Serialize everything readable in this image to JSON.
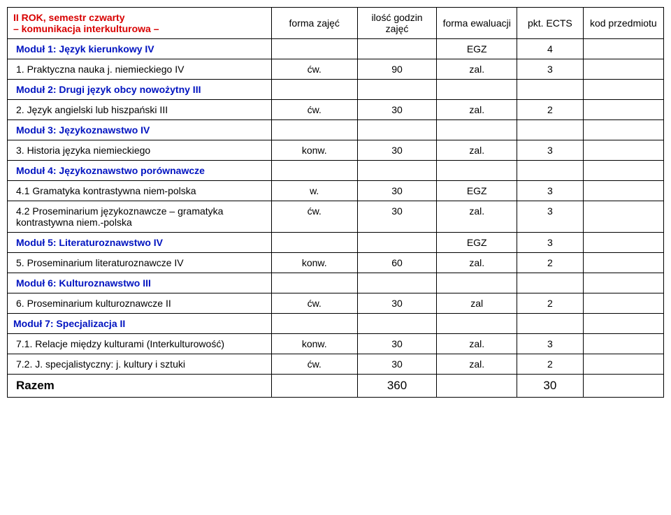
{
  "header": {
    "title_line1": "II ROK, semestr czwarty",
    "title_line2": "– komunikacja interkulturowa –",
    "cols": [
      "forma zajęć",
      "ilość godzin zajęć",
      "forma ewaluacji",
      "pkt. ECTS",
      "kod przedmiotu"
    ]
  },
  "rows": [
    {
      "type": "module",
      "name": "Moduł 1: Język kierunkowy IV",
      "a": "",
      "b": "",
      "c": "EGZ",
      "d": "4",
      "e": ""
    },
    {
      "type": "item",
      "name": "1. Praktyczna nauka j. niemieckiego IV",
      "a": "ćw.",
      "b": "90",
      "c": "zal.",
      "d": "3",
      "e": ""
    },
    {
      "type": "module",
      "name": "Moduł 2: Drugi język obcy nowożytny III",
      "a": "",
      "b": "",
      "c": "",
      "d": "",
      "e": ""
    },
    {
      "type": "item",
      "name": "2. Język angielski lub hiszpański III",
      "a": "ćw.",
      "b": "30",
      "c": "zal.",
      "d": "2",
      "e": ""
    },
    {
      "type": "module",
      "name": "Moduł 3: Językoznawstwo IV",
      "a": "",
      "b": "",
      "c": "",
      "d": "",
      "e": ""
    },
    {
      "type": "item",
      "name": "3. Historia języka niemieckiego",
      "a": "konw.",
      "b": "30",
      "c": "zal.",
      "d": "3",
      "e": ""
    },
    {
      "type": "module",
      "name": "Moduł 4: Językoznawstwo porównawcze",
      "a": "",
      "b": "",
      "c": "",
      "d": "",
      "e": ""
    },
    {
      "type": "item",
      "name": "4.1 Gramatyka kontrastywna niem-polska",
      "a": "w.",
      "b": "30",
      "c": "EGZ",
      "d": "3",
      "e": ""
    },
    {
      "type": "item",
      "name": "4.2 Proseminarium językoznawcze – gramatyka kontrastywna niem.-polska",
      "a": "ćw.",
      "b": "30",
      "c": "zal.",
      "d": "3",
      "e": ""
    },
    {
      "type": "module",
      "name": "Moduł 5: Literaturoznawstwo IV",
      "a": "",
      "b": "",
      "c": "EGZ",
      "d": "3",
      "e": ""
    },
    {
      "type": "item",
      "name": "5. Proseminarium literaturoznawcze IV",
      "a": "konw.",
      "b": "60",
      "c": "zal.",
      "d": "2",
      "e": ""
    },
    {
      "type": "module",
      "name": "Moduł 6: Kulturoznawstwo III",
      "a": "",
      "b": "",
      "c": "",
      "d": "",
      "e": ""
    },
    {
      "type": "item",
      "name": "6. Proseminarium kulturoznawcze II",
      "a": "ćw.",
      "b": "30",
      "c": "zal",
      "d": "2",
      "e": ""
    },
    {
      "type": "module-left",
      "name": "Moduł 7: Specjalizacja II",
      "a": "",
      "b": "",
      "c": "",
      "d": "",
      "e": ""
    },
    {
      "type": "item",
      "name": "7.1. Relacje między kulturami (Interkulturowość)",
      "a": "konw.",
      "b": "30",
      "c": "zal.",
      "d": "3",
      "e": ""
    },
    {
      "type": "item",
      "name": "7.2. J. specjalistyczny: j. kultury i sztuki",
      "a": "ćw.",
      "b": "30",
      "c": "zal.",
      "d": "2",
      "e": ""
    },
    {
      "type": "total",
      "name": "Razem",
      "a": "",
      "b": "360",
      "c": "",
      "d": "30",
      "e": ""
    }
  ]
}
